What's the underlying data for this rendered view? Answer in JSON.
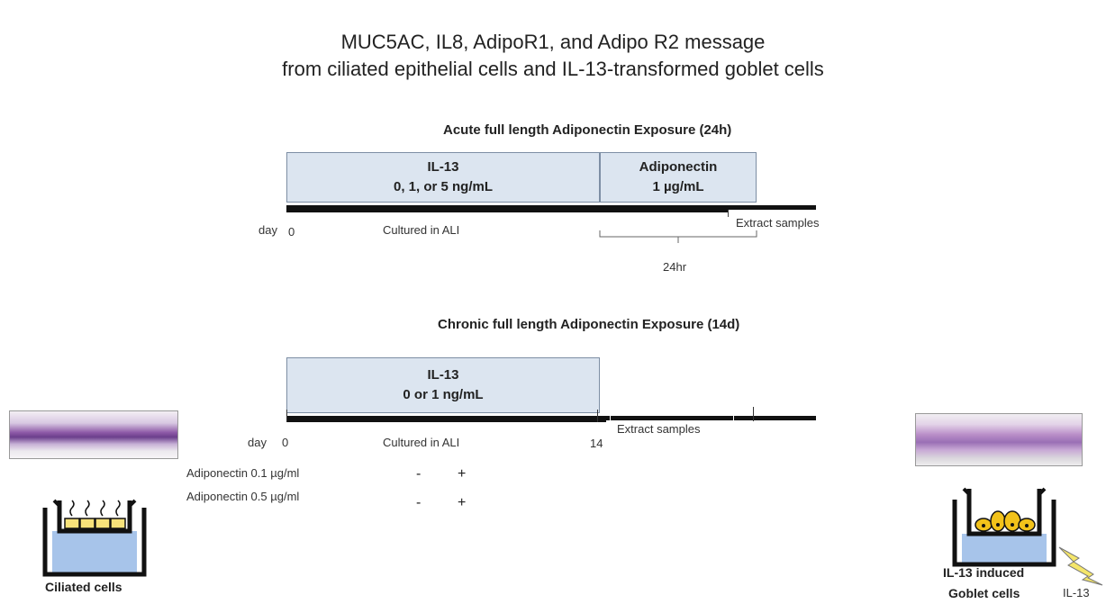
{
  "title": {
    "line1": "MUC5AC, IL8, AdipoR1, and Adipo R2 message",
    "line2": "from ciliated epithelial cells and IL-13-transformed goblet cells"
  },
  "acute": {
    "heading": "Acute full length Adiponectin Exposure (24h)",
    "il13_box": {
      "label": "IL-13",
      "dose": "0, 1, or 5 ng/mL"
    },
    "adipo_box": {
      "label": "Adiponectin",
      "dose": "1 µg/mL"
    },
    "day_label": "day",
    "day_start": "0",
    "culture_label": "Cultured in ALI",
    "extract_label": "Extract samples",
    "duration_label": "24hr"
  },
  "chronic": {
    "heading": "Chronic full length Adiponectin Exposure (14d)",
    "il13_box": {
      "label": "IL-13",
      "dose": "0 or 1 ng/mL"
    },
    "day_label": "day",
    "day_start": "0",
    "day_end": "14",
    "culture_label": "Cultured in ALI",
    "extract_label": "Extract samples",
    "conditions": [
      {
        "label": "Adiponectin 0.1 µg/ml",
        "minus": "-",
        "plus": "+"
      },
      {
        "label": "Adiponectin 0.5 µg/ml",
        "minus": "-",
        "plus": "+"
      }
    ]
  },
  "left_panel": {
    "caption": "Ciliated cells"
  },
  "right_panel": {
    "caption_line1": "IL-13 induced",
    "caption_line2": "Goblet cells",
    "stimulus_label": "IL-13"
  },
  "colors": {
    "box_fill": "#dce5f0",
    "box_border": "#7d8ea4",
    "medium_fill": "#a7c4ea",
    "cell_fill": "#f7e27a",
    "goblet_fill": "#f2c21a",
    "lightning": "#f5e66a"
  }
}
